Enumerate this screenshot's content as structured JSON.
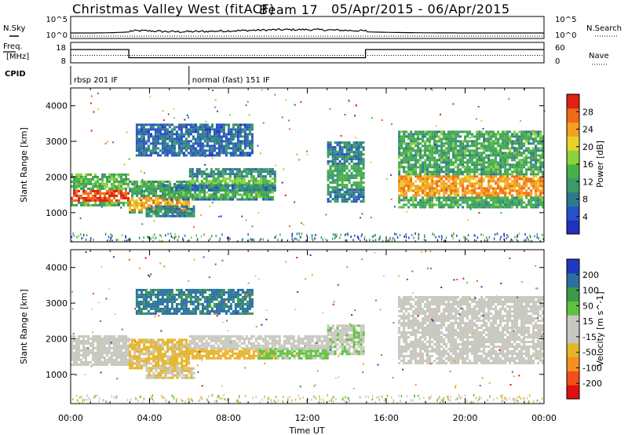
{
  "header": {
    "title_left": "Christmas Valley West (fitACF)",
    "beam": "Beam 17",
    "date_range": "05/Apr/2015 - 06/Apr/2015"
  },
  "side_labels": {
    "nsky": "N.Sky",
    "nsearch": "N.Search",
    "freq": "Freq.",
    "freq_unit": "[MHz]",
    "nave": "Nave",
    "cpid": "CPID"
  },
  "noise_panel": {
    "left_ticks": [
      "10^5",
      "10^0"
    ],
    "right_ticks": [
      "10^5",
      "10^0"
    ]
  },
  "freq_panel": {
    "left_ticks": [
      "18",
      "8"
    ],
    "right_ticks": [
      "60",
      "0"
    ],
    "freq_mhz": [
      [
        0,
        14.5
      ],
      [
        2.95,
        14.5
      ],
      [
        2.95,
        10.5
      ],
      [
        14.95,
        10.5
      ],
      [
        14.95,
        14.5
      ],
      [
        24,
        14.5
      ]
    ],
    "nave_dotted": 22
  },
  "cpid_panel": {
    "segments": [
      {
        "label": "rbsp 201 IF",
        "start_hour": 0
      },
      {
        "label": "normal (fast) 151 IF",
        "start_hour": 6
      }
    ]
  },
  "chart_data": [
    {
      "type": "heatmap",
      "name": "power",
      "ylabel": "Slant Range [km]",
      "xlabel": "Time UT",
      "xlim_hours": [
        0,
        24
      ],
      "ylim_km": [
        180,
        4500
      ],
      "xticks": [
        "00:00",
        "04:00",
        "08:00",
        "12:00",
        "16:00",
        "20:00",
        "00:00"
      ],
      "yticks": [
        1000,
        2000,
        3000,
        4000
      ],
      "colorbar": {
        "label": "Power [dB]",
        "ticks": [
          "28",
          "24",
          "20",
          "16",
          "12",
          "8",
          "4"
        ],
        "range": [
          0,
          30
        ],
        "colors": [
          "#2030c0",
          "#2850c8",
          "#2d7a8c",
          "#3a9a6a",
          "#48b048",
          "#8cd23a",
          "#e6d228",
          "#f5a020",
          "#f06a18",
          "#e02010"
        ]
      },
      "bands": [
        {
          "t0": 0.0,
          "t1": 2.95,
          "r0": 1200,
          "r1": 2100,
          "core0": 1350,
          "core1": 1650,
          "p": 27
        },
        {
          "t0": 2.95,
          "t1": 6.0,
          "r0": 1000,
          "r1": 1900,
          "core0": 1100,
          "core1": 1500,
          "p": 22
        },
        {
          "t0": 6.0,
          "t1": 10.3,
          "r0": 1650,
          "r1": 2250,
          "core0": 1800,
          "core1": 2050,
          "p": 15
        },
        {
          "t0": 4.7,
          "t1": 10.3,
          "r0": 1350,
          "r1": 1800,
          "core0": 1450,
          "core1": 1650,
          "p": 13
        },
        {
          "t0": 3.8,
          "t1": 6.2,
          "r0": 900,
          "r1": 1200,
          "core0": 980,
          "core1": 1100,
          "p": 10
        },
        {
          "t0": 3.3,
          "t1": 9.2,
          "r0": 2600,
          "r1": 3500,
          "core0": 2800,
          "core1": 3200,
          "p": 7
        },
        {
          "t0": 13.0,
          "t1": 14.8,
          "r0": 1300,
          "r1": 3000,
          "core0": 1700,
          "core1": 2400,
          "p": 12
        },
        {
          "t0": 16.6,
          "t1": 24.0,
          "r0": 1150,
          "r1": 3300,
          "core0": 1500,
          "core1": 2100,
          "p": 23
        }
      ]
    },
    {
      "type": "heatmap",
      "name": "velocity",
      "ylabel": "Slant Range [km]",
      "xlabel": "Time UT",
      "xlim_hours": [
        0,
        24
      ],
      "ylim_km": [
        180,
        4500
      ],
      "xticks": [
        "00:00",
        "04:00",
        "08:00",
        "12:00",
        "16:00",
        "20:00",
        "00:00"
      ],
      "yticks": [
        1000,
        2000,
        3000,
        4000
      ],
      "colorbar": {
        "label": "Velocity [m s^-1]",
        "ticks": [
          "200",
          "100",
          "50",
          "15",
          "-15",
          "-50",
          "-100",
          "-200"
        ],
        "range": [
          -250,
          250
        ],
        "colors": [
          "#e01010",
          "#f05018",
          "#f59020",
          "#e6b428",
          "#c8c8c0",
          "#c8c8c0",
          "#60c040",
          "#3a9a4a",
          "#2a70a0",
          "#2038c0"
        ]
      },
      "bands": [
        {
          "t0": 0.0,
          "t1": 2.95,
          "r0": 1300,
          "r1": 2100,
          "v": 0
        },
        {
          "t0": 2.95,
          "t1": 6.0,
          "r0": 1200,
          "r1": 2000,
          "v": -60
        },
        {
          "t0": 6.0,
          "t1": 10.3,
          "r0": 1450,
          "r1": 1750,
          "v": -75
        },
        {
          "t0": 9.5,
          "t1": 13.1,
          "r0": 1450,
          "r1": 1750,
          "v": 60
        },
        {
          "t0": 6.0,
          "t1": 13.2,
          "r0": 1750,
          "r1": 2100,
          "v": 0
        },
        {
          "t0": 3.3,
          "t1": 9.2,
          "r0": 2700,
          "r1": 3400,
          "v": 160
        },
        {
          "t0": 3.8,
          "t1": 6.2,
          "r0": 900,
          "r1": 1200,
          "v": -45
        },
        {
          "t0": 13.0,
          "t1": 14.8,
          "r0": 1600,
          "r1": 2400,
          "v": 40
        },
        {
          "t0": 16.6,
          "t1": 24.0,
          "r0": 1300,
          "r1": 3200,
          "v": 0
        }
      ]
    }
  ]
}
